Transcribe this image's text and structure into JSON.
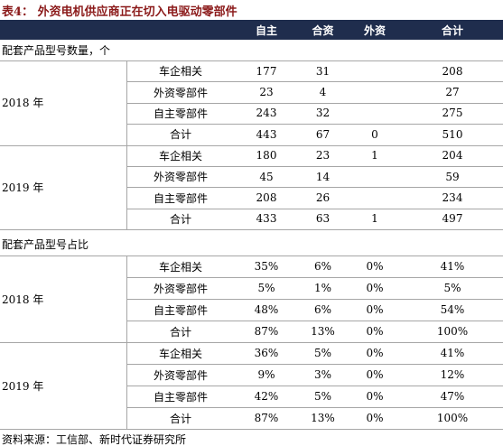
{
  "title": "表4： 外资电机供应商正在切入电驱动零部件",
  "columns": [
    "自主",
    "合资",
    "外资",
    "合计"
  ],
  "sections": [
    {
      "title": "配套产品型号数量，个",
      "groups": [
        {
          "year": "2018 年",
          "rows": [
            {
              "label": "车企相关",
              "values": [
                "177",
                "31",
                null,
                "208"
              ]
            },
            {
              "label": "外资零部件",
              "values": [
                "23",
                "4",
                null,
                "27"
              ]
            },
            {
              "label": "自主零部件",
              "values": [
                "243",
                "32",
                null,
                "275"
              ]
            },
            {
              "label": "合计",
              "values": [
                "443",
                "67",
                "0",
                "510"
              ]
            }
          ]
        },
        {
          "year": "2019 年",
          "rows": [
            {
              "label": "车企相关",
              "values": [
                "180",
                "23",
                "1",
                "204"
              ]
            },
            {
              "label": "外资零部件",
              "values": [
                "45",
                "14",
                null,
                "59"
              ]
            },
            {
              "label": "自主零部件",
              "values": [
                "208",
                "26",
                null,
                "234"
              ]
            },
            {
              "label": "合计",
              "values": [
                "433",
                "63",
                "1",
                "497"
              ]
            }
          ]
        }
      ]
    },
    {
      "title": "配套产品型号占比",
      "groups": [
        {
          "year": "2018 年",
          "rows": [
            {
              "label": "车企相关",
              "values": [
                "35%",
                "6%",
                "0%",
                "41%"
              ]
            },
            {
              "label": "外资零部件",
              "values": [
                "5%",
                "1%",
                "0%",
                "5%"
              ]
            },
            {
              "label": "自主零部件",
              "values": [
                "48%",
                "6%",
                "0%",
                "54%"
              ]
            },
            {
              "label": "合计",
              "values": [
                "87%",
                "13%",
                "0%",
                "100%"
              ]
            }
          ]
        },
        {
          "year": "2019 年",
          "rows": [
            {
              "label": "车企相关",
              "values": [
                "36%",
                "5%",
                "0%",
                "41%"
              ]
            },
            {
              "label": "外资零部件",
              "values": [
                "9%",
                "3%",
                "0%",
                "12%"
              ]
            },
            {
              "label": "自主零部件",
              "values": [
                "42%",
                "5%",
                "0%",
                "47%"
              ]
            },
            {
              "label": "合计",
              "values": [
                "87%",
                "13%",
                "0%",
                "100%"
              ]
            }
          ]
        }
      ]
    }
  ],
  "source": "资料来源：工信部、新时代证券研究所"
}
